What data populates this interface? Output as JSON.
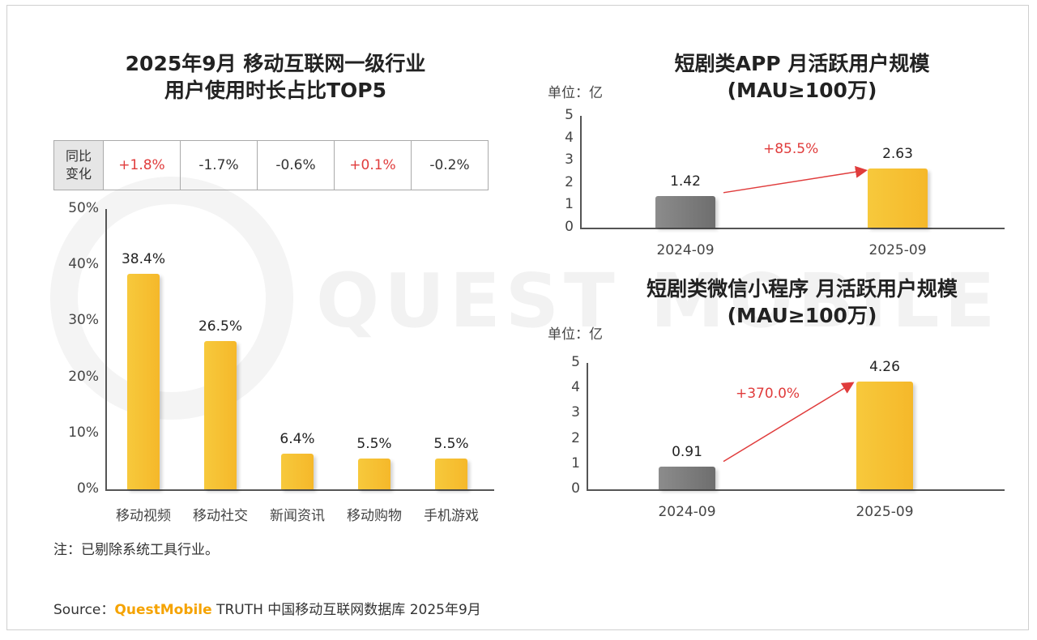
{
  "watermark_text": "QUEST MOBILE",
  "colors": {
    "bar_yellow": "#f5b82a",
    "bar_gray": "#7a7a7a",
    "growth_red": "#e03c3c",
    "brand_orange": "#f5a300"
  },
  "chart_data": [
    {
      "type": "bar",
      "title_line1": "2025年9月 移动互联网一级行业",
      "title_line2": "用户使用时长占比TOP5",
      "categories": [
        "移动视频",
        "移动社交",
        "新闻资讯",
        "移动购物",
        "手机游戏"
      ],
      "values": [
        38.4,
        26.5,
        6.4,
        5.5,
        5.5
      ],
      "value_labels": [
        "38.4%",
        "26.5%",
        "6.4%",
        "5.5%",
        "5.5%"
      ],
      "yticks": [
        "0%",
        "10%",
        "20%",
        "30%",
        "40%",
        "50%"
      ],
      "ylim": [
        0,
        50
      ],
      "yoy_header": "同比变化",
      "yoy_values": [
        "+1.8%",
        "-1.7%",
        "-0.6%",
        "+0.1%",
        "-0.2%"
      ],
      "yoy_positive": [
        true,
        false,
        false,
        true,
        false
      ],
      "note": "注：已剔除系统工具行业。"
    },
    {
      "type": "bar",
      "title_line1": "短剧类APP 月活跃用户规模",
      "title_line2": "(MAU≥100万)",
      "unit": "单位：亿",
      "categories": [
        "2024-09",
        "2025-09"
      ],
      "values": [
        1.42,
        2.63
      ],
      "value_labels": [
        "1.42",
        "2.63"
      ],
      "yticks": [
        "0",
        "1",
        "2",
        "3",
        "4",
        "5"
      ],
      "ylim": [
        0,
        5
      ],
      "growth": "+85.5%"
    },
    {
      "type": "bar",
      "title_line1": "短剧类微信小程序 月活跃用户规模",
      "title_line2": "(MAU≥100万)",
      "unit": "单位：亿",
      "categories": [
        "2024-09",
        "2025-09"
      ],
      "values": [
        0.91,
        4.26
      ],
      "value_labels": [
        "0.91",
        "4.26"
      ],
      "yticks": [
        "0",
        "1",
        "2",
        "3",
        "4",
        "5"
      ],
      "ylim": [
        0,
        5
      ],
      "growth": "+370.0%"
    }
  ],
  "source": {
    "prefix": "Source：",
    "brand": "QuestMobile",
    "rest": " TRUTH 中国移动互联网数据库 2025年9月"
  }
}
